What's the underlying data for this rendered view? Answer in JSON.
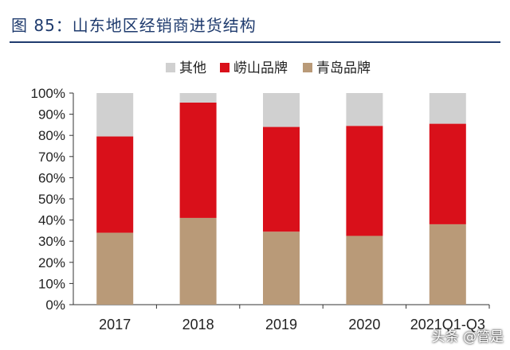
{
  "figure": {
    "title": "图 85：山东地区经销商进货结构",
    "watermark": "头条 @管是"
  },
  "colors": {
    "title": "#1f3b6e",
    "other": "#d0d0d0",
    "laoshan": "#d9101a",
    "qingdao": "#b99a78",
    "axis": "#333333"
  },
  "chart_data": {
    "type": "bar",
    "stacked": true,
    "categories": [
      "2017",
      "2018",
      "2019",
      "2020",
      "2021Q1-Q3"
    ],
    "series": [
      {
        "name": "青岛品牌",
        "color_key": "qingdao",
        "values": [
          34,
          41,
          34.5,
          32.5,
          38
        ]
      },
      {
        "name": "崂山品牌",
        "color_key": "laoshan",
        "values": [
          45.5,
          54.5,
          49.5,
          52,
          47.5
        ]
      },
      {
        "name": "其他",
        "color_key": "other",
        "values": [
          20.5,
          4.5,
          16,
          15.5,
          14.5
        ]
      }
    ],
    "legend_order": [
      "其他",
      "崂山品牌",
      "青岛品牌"
    ],
    "legend_position": "top",
    "ylim": [
      0,
      100
    ],
    "yticks": [
      "0%",
      "10%",
      "20%",
      "30%",
      "40%",
      "50%",
      "60%",
      "70%",
      "80%",
      "90%",
      "100%"
    ],
    "grid": false,
    "xlabel": "",
    "ylabel": ""
  }
}
